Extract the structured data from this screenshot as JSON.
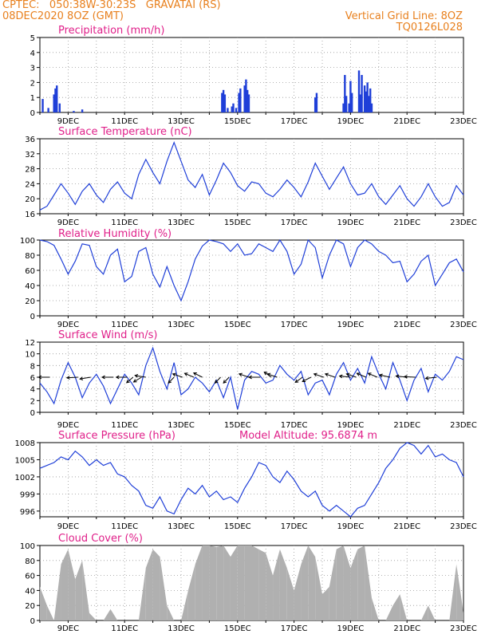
{
  "header": {
    "line1": "CPTEC:   050:38W-30:23S   GRAVATAI (RS)",
    "line2": "08DEC2020 8OZ (GMT)",
    "right1": "Vertical Grid Line: 8OZ",
    "right2": "TQ0126L028"
  },
  "colors": {
    "header": "#e8801e",
    "title": "#e0208a",
    "line": "#1f3fd8",
    "bar": "#1f3fd8",
    "cloud": "#b0b0b0"
  },
  "x_axis": {
    "start_day": 8,
    "end_day": 23,
    "labels": [
      {
        "day": 9,
        "text": "9DEC"
      },
      {
        "day": 11,
        "text": "11DEC"
      },
      {
        "day": 13,
        "text": "13DEC"
      },
      {
        "day": 15,
        "text": "15DEC"
      },
      {
        "day": 17,
        "text": "17DEC"
      },
      {
        "day": 19,
        "text": "19DEC"
      },
      {
        "day": 21,
        "text": "21DEC"
      },
      {
        "day": 23,
        "text": "23DEC"
      }
    ]
  },
  "chart_data": [
    {
      "type": "bar",
      "title": "Precipitation (mm/h)",
      "ylim": [
        0,
        5
      ],
      "yticks": [
        "0",
        "1",
        "2",
        "3",
        "4",
        "5"
      ],
      "grid": true,
      "x": [
        8.1,
        8.3,
        8.5,
        8.55,
        8.6,
        8.7,
        9.2,
        9.5,
        14.45,
        14.5,
        14.55,
        14.65,
        14.8,
        14.85,
        14.95,
        15.05,
        15.1,
        15.25,
        15.3,
        15.35,
        15.4,
        17.75,
        17.8,
        18.75,
        18.8,
        18.85,
        18.95,
        19.0,
        19.05,
        19.3,
        19.35,
        19.4,
        19.5,
        19.55,
        19.6,
        19.65,
        19.7,
        19.75
      ],
      "values": [
        0.9,
        0.3,
        1.2,
        1.6,
        1.8,
        0.6,
        0.1,
        0.2,
        1.3,
        1.5,
        1.2,
        0.3,
        0.4,
        0.6,
        0.3,
        1.3,
        1.6,
        1.8,
        2.2,
        1.5,
        1.2,
        1.0,
        1.3,
        0.6,
        2.5,
        1.1,
        0.6,
        2.1,
        1.3,
        2.8,
        1.2,
        2.5,
        1.8,
        1.4,
        2.0,
        1.1,
        1.6,
        0.6
      ]
    },
    {
      "type": "line",
      "title": "Surface Temperature (nC)",
      "ylim": [
        16,
        36
      ],
      "yticks": [
        "16",
        "20",
        "24",
        "28",
        "32",
        "36"
      ],
      "grid": true,
      "x": [
        8.0,
        8.25,
        8.5,
        8.75,
        9.0,
        9.25,
        9.5,
        9.75,
        10.0,
        10.25,
        10.5,
        10.75,
        11.0,
        11.25,
        11.5,
        11.75,
        12.0,
        12.25,
        12.5,
        12.75,
        13.0,
        13.25,
        13.5,
        13.75,
        14.0,
        14.25,
        14.5,
        14.75,
        15.0,
        15.25,
        15.5,
        15.75,
        16.0,
        16.25,
        16.5,
        16.75,
        17.0,
        17.25,
        17.5,
        17.75,
        18.0,
        18.25,
        18.5,
        18.75,
        19.0,
        19.25,
        19.5,
        19.75,
        20.0,
        20.25,
        20.5,
        20.75,
        21.0,
        21.25,
        21.5,
        21.75,
        22.0,
        22.25,
        22.5,
        22.75,
        23.0
      ],
      "values": [
        17.0,
        18.0,
        21.0,
        24.0,
        21.5,
        18.5,
        22.0,
        24.0,
        21.0,
        19.0,
        22.5,
        24.5,
        21.5,
        20.0,
        26.5,
        30.5,
        27.0,
        24.0,
        30.0,
        35.0,
        30.0,
        25.0,
        23.0,
        26.5,
        21.0,
        25.0,
        29.5,
        27.0,
        23.5,
        22.0,
        24.5,
        24.0,
        21.5,
        20.5,
        22.5,
        25.0,
        23.0,
        20.5,
        24.5,
        29.5,
        26.0,
        22.5,
        25.5,
        28.5,
        24.0,
        21.0,
        21.5,
        24.0,
        20.5,
        18.5,
        21.0,
        23.5,
        20.0,
        18.0,
        20.5,
        24.0,
        20.5,
        18.0,
        19.0,
        23.5,
        21.0
      ]
    },
    {
      "type": "line",
      "title": "Relative Humidity (%)",
      "ylim": [
        0,
        100
      ],
      "yticks": [
        "0",
        "20",
        "40",
        "60",
        "80",
        "100"
      ],
      "grid": true,
      "x": [
        8.0,
        8.25,
        8.5,
        8.75,
        9.0,
        9.25,
        9.5,
        9.75,
        10.0,
        10.25,
        10.5,
        10.75,
        11.0,
        11.25,
        11.5,
        11.75,
        12.0,
        12.25,
        12.5,
        12.75,
        13.0,
        13.25,
        13.5,
        13.75,
        14.0,
        14.25,
        14.5,
        14.75,
        15.0,
        15.25,
        15.5,
        15.75,
        16.0,
        16.25,
        16.5,
        16.75,
        17.0,
        17.25,
        17.5,
        17.75,
        18.0,
        18.25,
        18.5,
        18.75,
        19.0,
        19.25,
        19.5,
        19.75,
        20.0,
        20.25,
        20.5,
        20.75,
        21.0,
        21.25,
        21.5,
        21.75,
        22.0,
        22.25,
        22.5,
        22.75,
        23.0
      ],
      "values": [
        100,
        98,
        93,
        75,
        55,
        72,
        95,
        93,
        65,
        55,
        80,
        88,
        45,
        52,
        85,
        90,
        55,
        38,
        65,
        40,
        20,
        45,
        75,
        92,
        100,
        98,
        95,
        85,
        95,
        80,
        82,
        95,
        90,
        85,
        100,
        85,
        55,
        68,
        100,
        90,
        50,
        80,
        100,
        95,
        65,
        90,
        100,
        95,
        85,
        80,
        70,
        72,
        45,
        55,
        72,
        80,
        40,
        55,
        70,
        75,
        58
      ]
    },
    {
      "type": "line",
      "title": "Surface Wind (m/s)",
      "ylim": [
        0,
        12
      ],
      "yticks": [
        "0",
        "2",
        "4",
        "6",
        "8",
        "10",
        "12"
      ],
      "grid": true,
      "x": [
        8.0,
        8.25,
        8.5,
        8.75,
        9.0,
        9.25,
        9.5,
        9.75,
        10.0,
        10.25,
        10.5,
        10.75,
        11.0,
        11.25,
        11.5,
        11.75,
        12.0,
        12.25,
        12.5,
        12.75,
        13.0,
        13.25,
        13.5,
        13.75,
        14.0,
        14.25,
        14.5,
        14.75,
        15.0,
        15.25,
        15.5,
        15.75,
        16.0,
        16.25,
        16.5,
        16.75,
        17.0,
        17.25,
        17.5,
        17.75,
        18.0,
        18.25,
        18.5,
        18.75,
        19.0,
        19.25,
        19.5,
        19.75,
        20.0,
        20.25,
        20.5,
        20.75,
        21.0,
        21.25,
        21.5,
        21.75,
        22.0,
        22.25,
        22.5,
        22.75,
        23.0
      ],
      "values": [
        5.0,
        3.5,
        1.5,
        5.5,
        8.5,
        6.0,
        2.5,
        5.0,
        6.5,
        4.5,
        1.5,
        4.0,
        6.5,
        5.0,
        3.0,
        8.0,
        11.0,
        7.0,
        4.0,
        8.5,
        3.0,
        4.0,
        6.0,
        5.0,
        3.5,
        5.5,
        2.5,
        6.0,
        0.5,
        5.5,
        7.0,
        6.5,
        5.0,
        5.5,
        8.0,
        6.5,
        5.5,
        7.0,
        3.0,
        5.0,
        5.5,
        3.0,
        6.5,
        8.5,
        5.5,
        7.5,
        5.0,
        9.5,
        6.5,
        4.0,
        8.5,
        5.5,
        2.0,
        5.5,
        7.5,
        3.5,
        6.5,
        5.5,
        7.0,
        9.5,
        9.0
      ]
    },
    {
      "type": "line",
      "title": "Surface Pressure (hPa)",
      "annotation": "Model Altitude: 95.6874 m",
      "ylim": [
        995,
        1008
      ],
      "yticks": [
        "996",
        "999",
        "1002",
        "1005",
        "1008"
      ],
      "ytick_values": [
        996,
        999,
        1002,
        1005,
        1008
      ],
      "grid": true,
      "x": [
        8.0,
        8.25,
        8.5,
        8.75,
        9.0,
        9.25,
        9.5,
        9.75,
        10.0,
        10.25,
        10.5,
        10.75,
        11.0,
        11.25,
        11.5,
        11.75,
        12.0,
        12.25,
        12.5,
        12.75,
        13.0,
        13.25,
        13.5,
        13.75,
        14.0,
        14.25,
        14.5,
        14.75,
        15.0,
        15.25,
        15.5,
        15.75,
        16.0,
        16.25,
        16.5,
        16.75,
        17.0,
        17.25,
        17.5,
        17.75,
        18.0,
        18.25,
        18.5,
        18.75,
        19.0,
        19.25,
        19.5,
        19.75,
        20.0,
        20.25,
        20.5,
        20.75,
        21.0,
        21.25,
        21.5,
        21.75,
        22.0,
        22.25,
        22.5,
        22.75,
        23.0
      ],
      "values": [
        1003.5,
        1004.0,
        1004.5,
        1005.5,
        1005.0,
        1006.5,
        1005.5,
        1004.0,
        1005.0,
        1004.0,
        1004.5,
        1002.5,
        1002.0,
        1000.5,
        999.5,
        997.0,
        996.5,
        998.5,
        996.0,
        995.5,
        998.0,
        1000.0,
        999.0,
        1000.5,
        998.5,
        999.5,
        998.0,
        998.5,
        997.5,
        1000.0,
        1002.0,
        1004.5,
        1004.0,
        1002.0,
        1001.0,
        1003.0,
        1001.5,
        999.5,
        998.5,
        999.5,
        997.0,
        996.0,
        997.0,
        996.0,
        995.0,
        996.5,
        997.0,
        999.0,
        1001.0,
        1003.5,
        1005.0,
        1007.0,
        1008.0,
        1007.5,
        1006.0,
        1007.5,
        1005.5,
        1006.0,
        1005.0,
        1004.5,
        1002.0
      ]
    },
    {
      "type": "area",
      "title": "Cloud Cover (%)",
      "ylim": [
        0,
        100
      ],
      "yticks": [
        "0",
        "20",
        "40",
        "60",
        "80",
        "100"
      ],
      "grid": true,
      "x": [
        8.0,
        8.25,
        8.5,
        8.75,
        9.0,
        9.25,
        9.5,
        9.75,
        10.0,
        10.25,
        10.5,
        10.75,
        11.0,
        11.25,
        11.5,
        11.75,
        12.0,
        12.25,
        12.5,
        12.75,
        13.0,
        13.25,
        13.5,
        13.75,
        14.0,
        14.25,
        14.5,
        14.75,
        15.0,
        15.25,
        15.5,
        15.75,
        16.0,
        16.25,
        16.5,
        16.75,
        17.0,
        17.25,
        17.5,
        17.75,
        18.0,
        18.25,
        18.5,
        18.75,
        19.0,
        19.25,
        19.5,
        19.75,
        20.0,
        20.25,
        20.5,
        20.75,
        21.0,
        21.25,
        21.5,
        21.75,
        22.0,
        22.25,
        22.5,
        22.75,
        23.0
      ],
      "values": [
        45,
        20,
        0,
        75,
        95,
        55,
        80,
        10,
        0,
        0,
        15,
        0,
        0,
        0,
        0,
        70,
        95,
        85,
        20,
        0,
        0,
        40,
        75,
        100,
        100,
        98,
        100,
        85,
        100,
        100,
        100,
        95,
        90,
        60,
        95,
        70,
        40,
        75,
        100,
        85,
        35,
        45,
        95,
        100,
        70,
        95,
        100,
        30,
        0,
        0,
        20,
        35,
        0,
        0,
        0,
        20,
        0,
        0,
        0,
        75,
        10
      ]
    }
  ],
  "wind_arrows": [
    {
      "x": 8.35,
      "dir": -90
    },
    {
      "x": 9.35,
      "dir": -95
    },
    {
      "x": 9.8,
      "dir": -105
    },
    {
      "x": 10.6,
      "dir": -90
    },
    {
      "x": 11.1,
      "dir": -90
    },
    {
      "x": 11.3,
      "dir": -145
    },
    {
      "x": 11.6,
      "dir": -135
    },
    {
      "x": 11.75,
      "dir": -75
    },
    {
      "x": 12.75,
      "dir": -150
    },
    {
      "x": 13.05,
      "dir": -60
    },
    {
      "x": 13.45,
      "dir": -55
    },
    {
      "x": 13.75,
      "dir": -50
    },
    {
      "x": 14.4,
      "dir": -150
    },
    {
      "x": 14.7,
      "dir": -150
    },
    {
      "x": 15.4,
      "dir": -60
    },
    {
      "x": 15.8,
      "dir": -90
    },
    {
      "x": 16.2,
      "dir": -40
    },
    {
      "x": 16.4,
      "dir": -60
    },
    {
      "x": 17.3,
      "dir": -140
    },
    {
      "x": 17.6,
      "dir": -130
    },
    {
      "x": 18.05,
      "dir": -60
    },
    {
      "x": 18.45,
      "dir": -60
    },
    {
      "x": 19.0,
      "dir": -80
    },
    {
      "x": 19.2,
      "dir": -60
    },
    {
      "x": 19.55,
      "dir": -55
    },
    {
      "x": 19.95,
      "dir": -55
    },
    {
      "x": 20.4,
      "dir": -70
    },
    {
      "x": 21.0,
      "dir": -80
    },
    {
      "x": 21.3,
      "dir": -85
    },
    {
      "x": 22.05,
      "dir": -100
    }
  ]
}
